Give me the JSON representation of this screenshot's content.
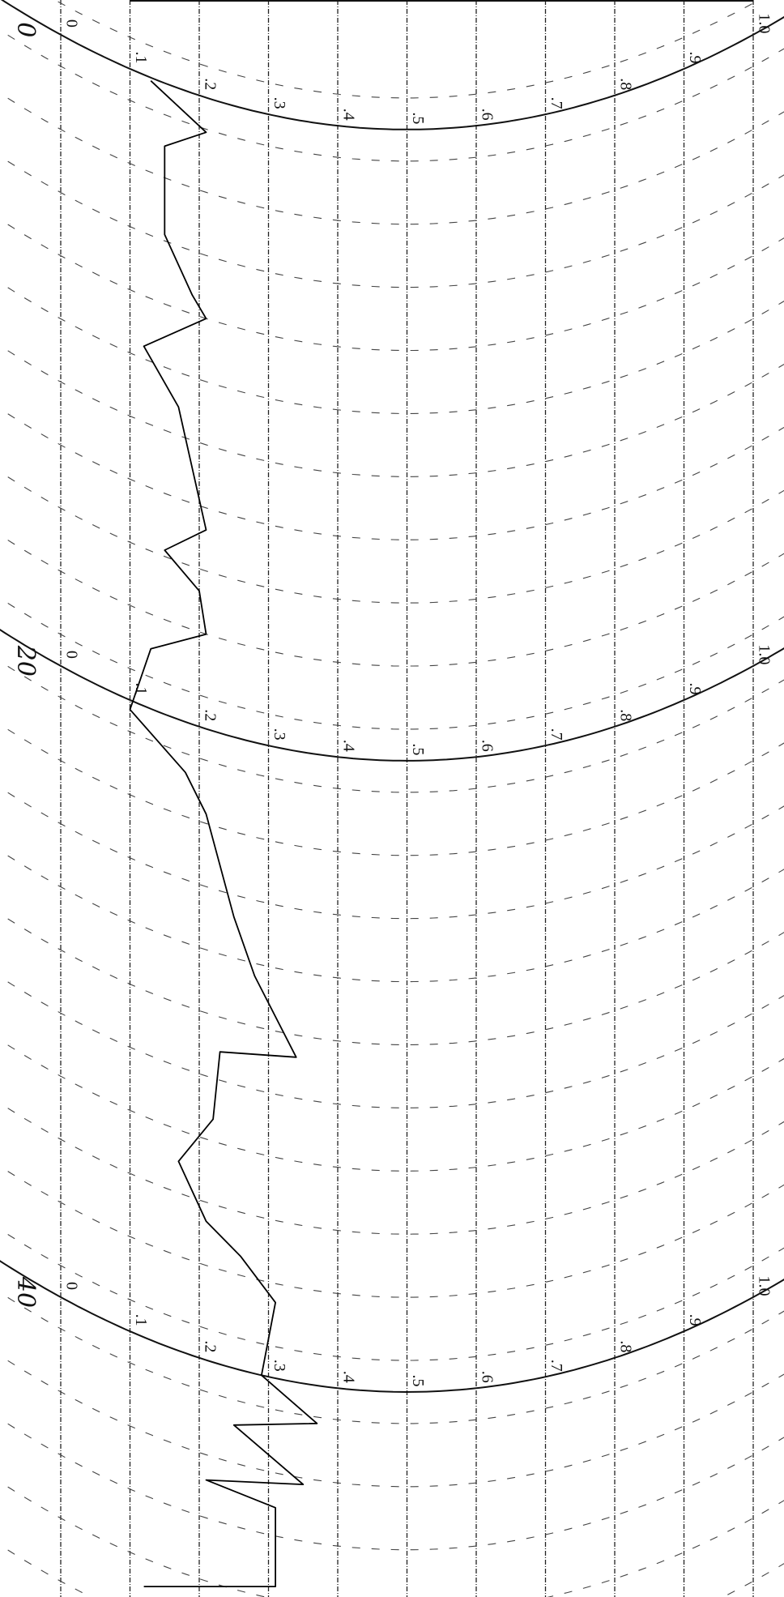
{
  "scale": {
    "ticks": [
      {
        "value": 0,
        "label": "0"
      },
      {
        "value": 0.1,
        "label": ".1"
      },
      {
        "value": 0.2,
        "label": ".2"
      },
      {
        "value": 0.3,
        "label": ".3"
      },
      {
        "value": 0.4,
        "label": ".4"
      },
      {
        "value": 0.5,
        "label": ".5"
      },
      {
        "value": 0.6,
        "label": ".6"
      },
      {
        "value": 0.7,
        "label": ".7"
      },
      {
        "value": 0.8,
        "label": ".8"
      },
      {
        "value": 0.9,
        "label": ".9"
      },
      {
        "value": 1,
        "label": "1.0"
      }
    ]
  },
  "time_marks": [
    0,
    20,
    40
  ],
  "tlim": [
    -1.1,
    49.5
  ],
  "trace": {
    "t": [
      0.1,
      1.1,
      2.0,
      4.8,
      6.4,
      7.0,
      8.6,
      10.1,
      13.7,
      14.8,
      15.7,
      17.0,
      18.1,
      20.3,
      21.6,
      22.7,
      25.7,
      27.4,
      29.7,
      30.1,
      32.3,
      34.0,
      35.6,
      36.4,
      37.6,
      40.0,
      41.2,
      41.8,
      43.2,
      43.8,
      44.1,
      46.6,
      47.9
    ],
    "values": [
      0.13,
      0.21,
      0.15,
      0.15,
      0.19,
      0.21,
      0.12,
      0.17,
      0.21,
      0.15,
      0.2,
      0.21,
      0.13,
      0.1,
      0.18,
      0.21,
      0.25,
      0.28,
      0.34,
      0.23,
      0.22,
      0.17,
      0.21,
      0.26,
      0.31,
      0.29,
      0.37,
      0.25,
      0.35,
      0.21,
      0.31,
      0.31,
      0.12
    ]
  }
}
